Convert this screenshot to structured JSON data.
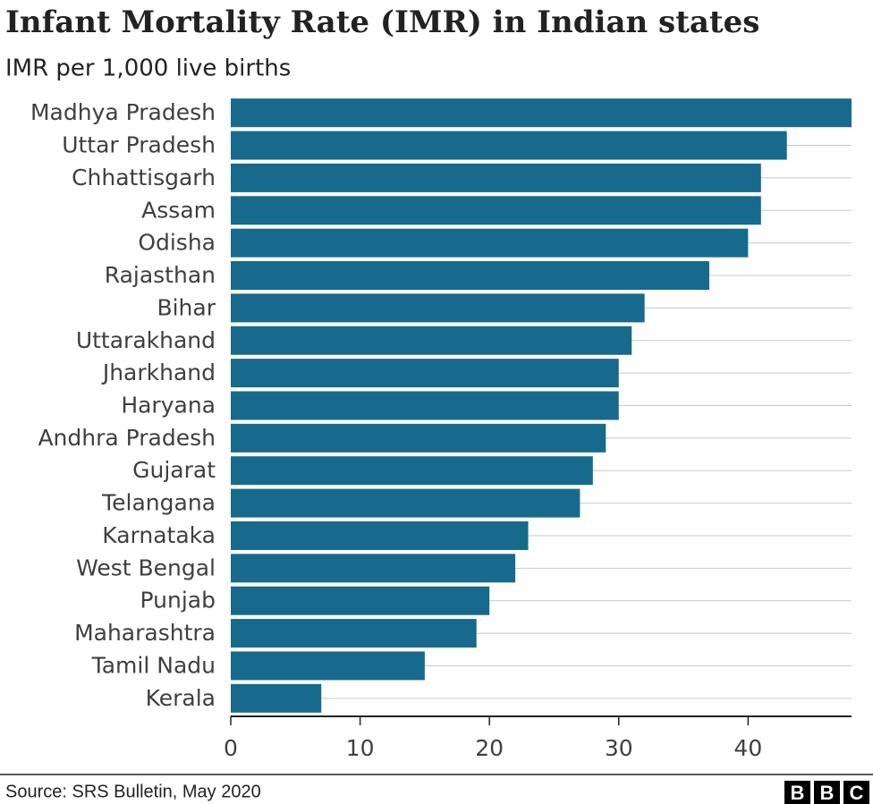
{
  "chart_data": {
    "type": "bar",
    "orientation": "horizontal",
    "title": "Infant Mortality Rate (IMR) in Indian states",
    "subtitle": "IMR per 1,000 live births",
    "categories": [
      "Madhya Pradesh",
      "Uttar Pradesh",
      "Chhattisgarh",
      "Assam",
      "Odisha",
      "Rajasthan",
      "Bihar",
      "Uttarakhand",
      "Jharkhand",
      "Haryana",
      "Andhra Pradesh",
      "Gujarat",
      "Telangana",
      "Karnataka",
      "West Bengal",
      "Punjab",
      "Maharashtra",
      "Tamil Nadu",
      "Kerala"
    ],
    "values": [
      48,
      43,
      41,
      41,
      40,
      37,
      32,
      31,
      30,
      30,
      29,
      28,
      27,
      23,
      22,
      20,
      19,
      15,
      7
    ],
    "color": "#176a8c",
    "xlim": [
      0,
      48
    ],
    "xticks": [
      0,
      10,
      20,
      30,
      40
    ],
    "source": "Source: SRS Bulletin, May 2020",
    "logo": [
      "B",
      "B",
      "C"
    ]
  }
}
